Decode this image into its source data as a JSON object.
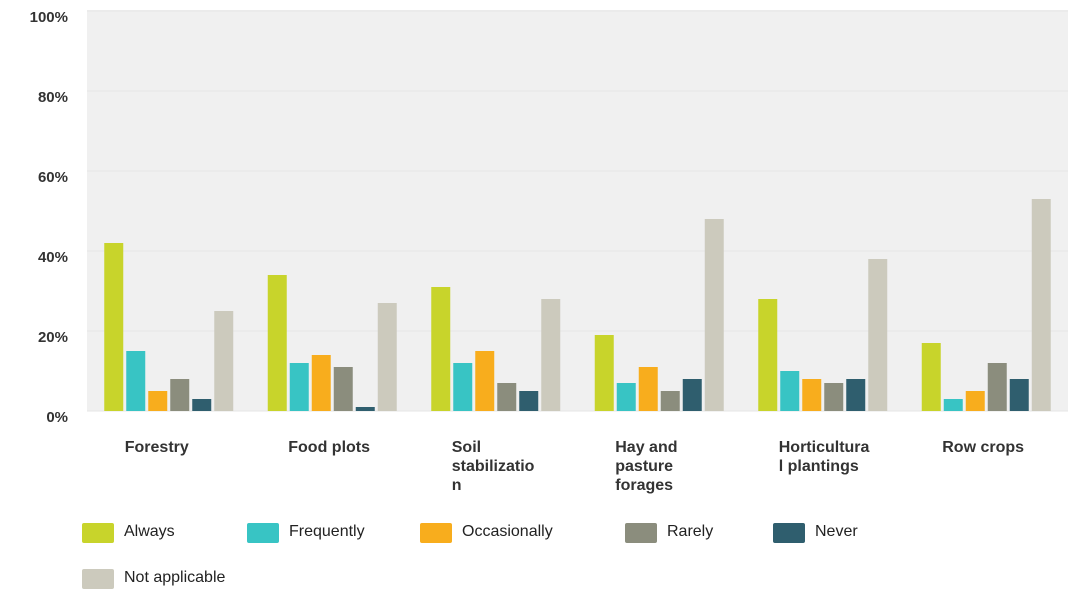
{
  "chart_data": {
    "type": "bar",
    "categories": [
      "Forestry",
      "Food plots",
      "Soil stabilization",
      "Hay and pasture forages",
      "Horticultural plantings",
      "Row crops"
    ],
    "series": [
      {
        "name": "Always",
        "color": "#c8d42b",
        "values": [
          42,
          34,
          31,
          19,
          28,
          17
        ]
      },
      {
        "name": "Frequently",
        "color": "#38c4c4",
        "values": [
          15,
          12,
          12,
          7,
          10,
          3
        ]
      },
      {
        "name": "Occasionally",
        "color": "#f8ad1d",
        "values": [
          5,
          14,
          15,
          11,
          8,
          5
        ]
      },
      {
        "name": "Rarely",
        "color": "#8b8d7d",
        "values": [
          8,
          11,
          7,
          5,
          7,
          12
        ]
      },
      {
        "name": "Never",
        "color": "#2f5e6e",
        "values": [
          3,
          1,
          5,
          8,
          8,
          8
        ]
      },
      {
        "name": "Not applicable",
        "color": "#cccabd",
        "values": [
          25,
          27,
          28,
          48,
          38,
          53
        ]
      }
    ],
    "ylim": [
      0,
      100
    ],
    "yticks": [
      {
        "value": 0,
        "label": "0%"
      },
      {
        "value": 20,
        "label": "20%"
      },
      {
        "value": 40,
        "label": "40%"
      },
      {
        "value": 60,
        "label": "60%"
      },
      {
        "value": 80,
        "label": "80%"
      },
      {
        "value": 100,
        "label": "100%"
      }
    ],
    "grid": true
  }
}
